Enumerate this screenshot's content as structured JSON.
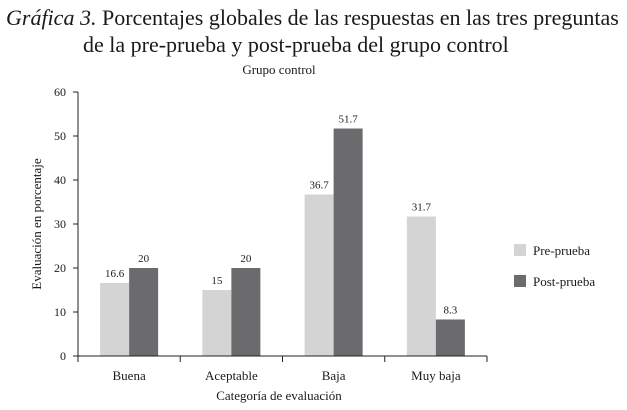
{
  "caption": {
    "prefix": "Gráfica 3.",
    "line1": "Porcentajes globales de las respuestas en las tres preguntas",
    "line2": "de la pre-prueba y post-prueba del grupo control"
  },
  "chart_data": {
    "type": "bar",
    "title": "Grupo control",
    "xlabel": "Categoría de evaluación",
    "ylabel": "Evaluación en porcentaje",
    "ylim": [
      0,
      60
    ],
    "yticks": [
      0,
      10,
      20,
      30,
      40,
      50,
      60
    ],
    "yticks_labels": [
      "0",
      "10",
      "20",
      "30",
      "40",
      "50",
      "60"
    ],
    "grid": false,
    "legend_position": "right",
    "categories": [
      "Buena",
      "Aceptable",
      "Baja",
      "Muy baja"
    ],
    "series": [
      {
        "name": "Pre-prueba",
        "color": "#d4d4d4",
        "values": [
          16.6,
          15,
          36.7,
          31.7
        ],
        "labels": [
          "16.6",
          "15",
          "36.7",
          "31.7"
        ]
      },
      {
        "name": "Post-prueba",
        "color": "#6b6b6e",
        "values": [
          20,
          20,
          51.7,
          8.3
        ],
        "labels": [
          "20",
          "20",
          "51.7",
          "8.3"
        ]
      }
    ]
  }
}
